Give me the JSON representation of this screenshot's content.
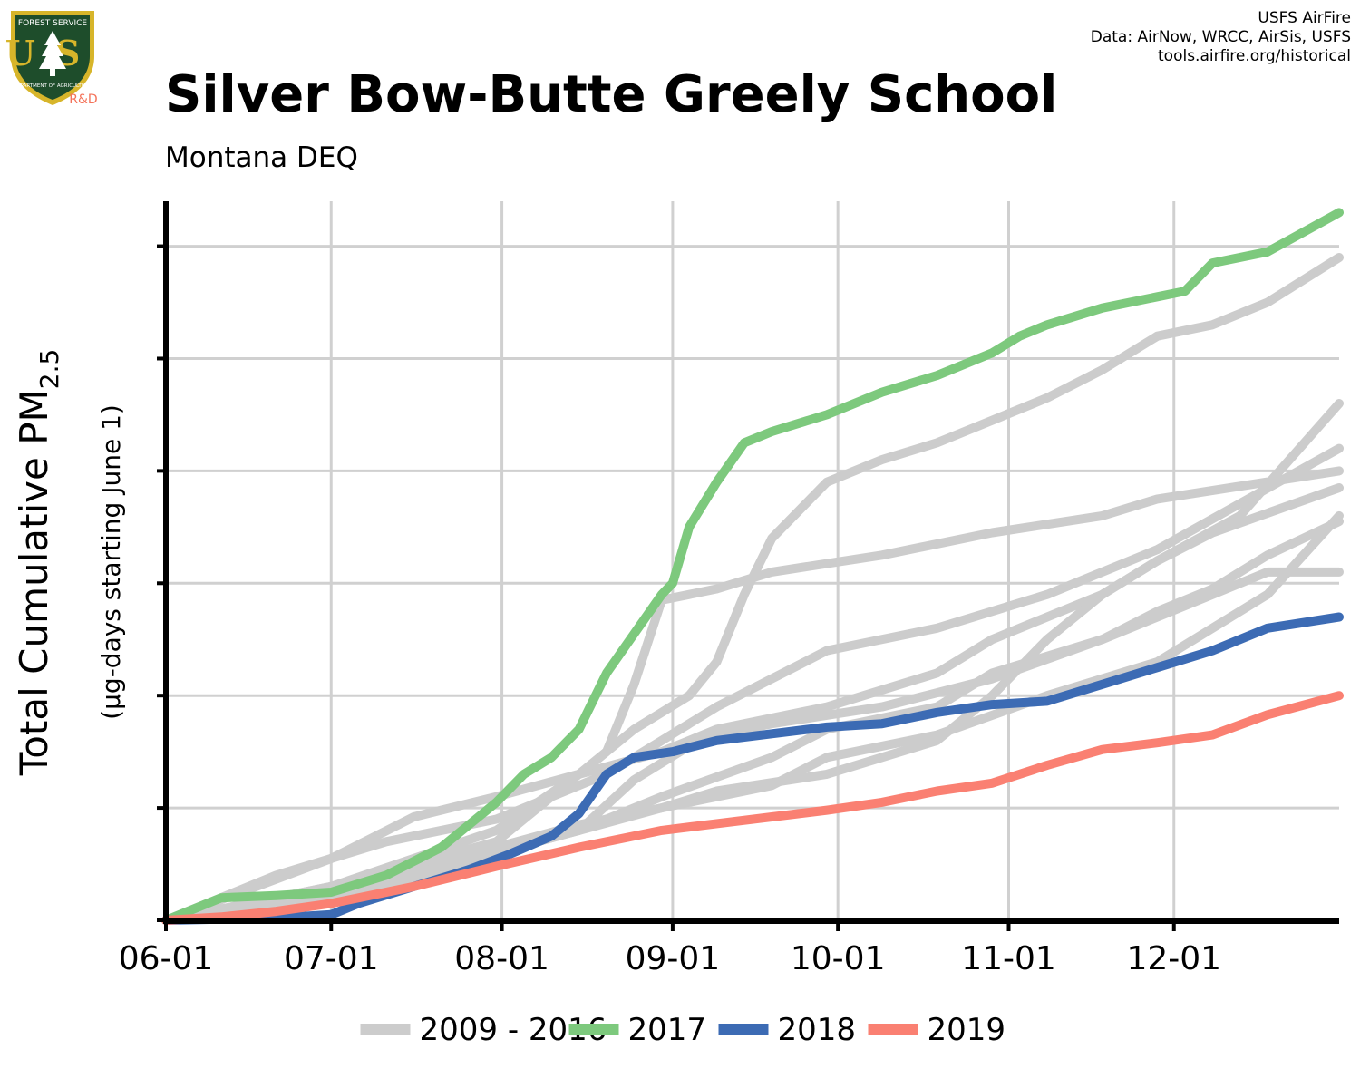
{
  "header": {
    "title": "Silver Bow-Butte Greely School",
    "subtitle": "Montana DEQ",
    "credits": [
      "USFS AirFire",
      "Data: AirNow, WRCC, AirSis, USFS",
      "tools.airfire.org/historical"
    ]
  },
  "logo": {
    "top_text": "FOREST SERVICE",
    "letters": "US",
    "bottom_text": "DEPARTMENT OF AGRICULTURE",
    "badge": "R&D",
    "colors": {
      "shield": "#1e4d2b",
      "gold": "#d7b52a",
      "badge": "#f4735a"
    }
  },
  "chart_data": {
    "type": "line",
    "title": "Silver Bow-Butte Greely School",
    "subtitle": "Montana DEQ",
    "ylabel_main": "Total Cumulative PM",
    "ylabel_sub": "2.5",
    "ylabel_units": "(µg-days starting June 1)",
    "x_ticks": [
      "06-01",
      "07-01",
      "08-01",
      "09-01",
      "10-01",
      "11-01",
      "12-01"
    ],
    "x_tick_days": [
      0,
      30,
      61,
      92,
      122,
      153,
      183
    ],
    "xlim": [
      0,
      213
    ],
    "ylim": [
      0,
      6.4
    ],
    "y_gridlines": [
      1,
      2,
      3,
      4,
      5,
      6
    ],
    "y_tick_labels": "none",
    "grid": true,
    "legend_position": "bottom",
    "legend": [
      {
        "label": "2009 - 2016",
        "color": "#cccccc"
      },
      {
        "label": "2017",
        "color": "#7dc97d"
      },
      {
        "label": "2018",
        "color": "#3c6bb4"
      },
      {
        "label": "2019",
        "color": "#fa8072"
      }
    ],
    "series": [
      {
        "name": "2009 - 2016",
        "color": "#cccccc",
        "points": [
          [
            0,
            0
          ],
          [
            20,
            0.4
          ],
          [
            40,
            0.7
          ],
          [
            60,
            0.9
          ],
          [
            80,
            1.3
          ],
          [
            90,
            1.6
          ],
          [
            100,
            1.9
          ],
          [
            120,
            2.4
          ],
          [
            140,
            2.6
          ],
          [
            160,
            2.9
          ],
          [
            180,
            3.3
          ],
          [
            213,
            4.2
          ]
        ]
      },
      {
        "name": "2009 - 2016",
        "color": "#cccccc",
        "points": [
          [
            0,
            0
          ],
          [
            30,
            0.55
          ],
          [
            45,
            0.92
          ],
          [
            60,
            1.1
          ],
          [
            75,
            1.3
          ],
          [
            90,
            1.5
          ],
          [
            100,
            1.7
          ],
          [
            120,
            1.9
          ],
          [
            140,
            2.2
          ],
          [
            150,
            2.5
          ],
          [
            170,
            2.9
          ],
          [
            180,
            3.2
          ],
          [
            195,
            3.6
          ],
          [
            213,
            4.6
          ]
        ]
      },
      {
        "name": "2009 - 2016",
        "color": "#cccccc",
        "points": [
          [
            0,
            0
          ],
          [
            30,
            0.3
          ],
          [
            60,
            0.7
          ],
          [
            75,
            1.3
          ],
          [
            80,
            1.5
          ],
          [
            85,
            2.1
          ],
          [
            90,
            2.85
          ],
          [
            100,
            2.95
          ],
          [
            110,
            3.1
          ],
          [
            130,
            3.25
          ],
          [
            150,
            3.45
          ],
          [
            170,
            3.6
          ],
          [
            180,
            3.75
          ],
          [
            213,
            4.0
          ]
        ]
      },
      {
        "name": "2009 - 2016",
        "color": "#cccccc",
        "points": [
          [
            0,
            0
          ],
          [
            30,
            0.3
          ],
          [
            60,
            0.8
          ],
          [
            75,
            1.3
          ],
          [
            85,
            1.7
          ],
          [
            95,
            2.0
          ],
          [
            100,
            2.3
          ],
          [
            105,
            2.9
          ],
          [
            110,
            3.4
          ],
          [
            120,
            3.9
          ],
          [
            130,
            4.1
          ],
          [
            140,
            4.25
          ],
          [
            150,
            4.45
          ],
          [
            160,
            4.65
          ],
          [
            170,
            4.9
          ],
          [
            180,
            5.2
          ],
          [
            190,
            5.3
          ],
          [
            200,
            5.5
          ],
          [
            213,
            5.9
          ]
        ]
      },
      {
        "name": "2009 - 2016",
        "color": "#cccccc",
        "points": [
          [
            0,
            0
          ],
          [
            30,
            0.2
          ],
          [
            60,
            0.6
          ],
          [
            75,
            0.8
          ],
          [
            90,
            1.0
          ],
          [
            100,
            1.15
          ],
          [
            120,
            1.3
          ],
          [
            140,
            1.6
          ],
          [
            150,
            2.0
          ],
          [
            160,
            2.5
          ],
          [
            170,
            2.9
          ],
          [
            180,
            3.2
          ],
          [
            190,
            3.45
          ],
          [
            213,
            3.85
          ]
        ]
      },
      {
        "name": "2009 - 2016",
        "color": "#cccccc",
        "points": [
          [
            0,
            0
          ],
          [
            30,
            0.25
          ],
          [
            60,
            0.65
          ],
          [
            75,
            0.85
          ],
          [
            90,
            1.0
          ],
          [
            110,
            1.2
          ],
          [
            120,
            1.45
          ],
          [
            140,
            1.65
          ],
          [
            160,
            2.0
          ],
          [
            180,
            2.3
          ],
          [
            190,
            2.6
          ],
          [
            200,
            2.9
          ],
          [
            213,
            3.6
          ]
        ]
      },
      {
        "name": "2009 - 2016",
        "color": "#cccccc",
        "points": [
          [
            0,
            0
          ],
          [
            30,
            0.15
          ],
          [
            60,
            0.6
          ],
          [
            75,
            0.8
          ],
          [
            90,
            1.1
          ],
          [
            110,
            1.45
          ],
          [
            120,
            1.7
          ],
          [
            140,
            1.9
          ],
          [
            150,
            2.2
          ],
          [
            170,
            2.5
          ],
          [
            180,
            2.7
          ],
          [
            190,
            2.9
          ],
          [
            200,
            3.1
          ],
          [
            213,
            3.1
          ]
        ]
      },
      {
        "name": "2009 - 2016",
        "color": "#cccccc",
        "points": [
          [
            0,
            0
          ],
          [
            30,
            0.2
          ],
          [
            60,
            0.62
          ],
          [
            75,
            0.8
          ],
          [
            85,
            1.25
          ],
          [
            95,
            1.55
          ],
          [
            100,
            1.65
          ],
          [
            110,
            1.75
          ],
          [
            130,
            1.9
          ],
          [
            150,
            2.15
          ],
          [
            170,
            2.5
          ],
          [
            180,
            2.75
          ],
          [
            190,
            2.95
          ],
          [
            200,
            3.25
          ],
          [
            213,
            3.55
          ]
        ]
      },
      {
        "name": "2017",
        "color": "#7dc97d",
        "points": [
          [
            0,
            0
          ],
          [
            10,
            0.2
          ],
          [
            20,
            0.22
          ],
          [
            30,
            0.25
          ],
          [
            40,
            0.4
          ],
          [
            50,
            0.65
          ],
          [
            60,
            1.05
          ],
          [
            65,
            1.3
          ],
          [
            70,
            1.45
          ],
          [
            75,
            1.7
          ],
          [
            80,
            2.2
          ],
          [
            85,
            2.55
          ],
          [
            90,
            2.9
          ],
          [
            92,
            3.0
          ],
          [
            95,
            3.5
          ],
          [
            100,
            3.9
          ],
          [
            105,
            4.25
          ],
          [
            110,
            4.35
          ],
          [
            120,
            4.5
          ],
          [
            130,
            4.7
          ],
          [
            140,
            4.85
          ],
          [
            150,
            5.05
          ],
          [
            155,
            5.2
          ],
          [
            160,
            5.3
          ],
          [
            170,
            5.45
          ],
          [
            180,
            5.55
          ],
          [
            185,
            5.6
          ],
          [
            190,
            5.85
          ],
          [
            200,
            5.95
          ],
          [
            213,
            6.3
          ]
        ]
      },
      {
        "name": "2018",
        "color": "#3c6bb4",
        "points": [
          [
            0,
            0
          ],
          [
            20,
            0.02
          ],
          [
            30,
            0.05
          ],
          [
            35,
            0.15
          ],
          [
            45,
            0.3
          ],
          [
            55,
            0.45
          ],
          [
            62,
            0.58
          ],
          [
            70,
            0.75
          ],
          [
            75,
            0.95
          ],
          [
            80,
            1.3
          ],
          [
            85,
            1.45
          ],
          [
            92,
            1.5
          ],
          [
            100,
            1.6
          ],
          [
            110,
            1.66
          ],
          [
            120,
            1.72
          ],
          [
            130,
            1.75
          ],
          [
            140,
            1.85
          ],
          [
            150,
            1.92
          ],
          [
            160,
            1.95
          ],
          [
            170,
            2.1
          ],
          [
            180,
            2.25
          ],
          [
            190,
            2.4
          ],
          [
            200,
            2.6
          ],
          [
            213,
            2.7
          ]
        ]
      },
      {
        "name": "2019",
        "color": "#fa8072",
        "points": [
          [
            0,
            0
          ],
          [
            10,
            0.03
          ],
          [
            20,
            0.08
          ],
          [
            30,
            0.15
          ],
          [
            45,
            0.3
          ],
          [
            60,
            0.48
          ],
          [
            75,
            0.65
          ],
          [
            90,
            0.8
          ],
          [
            100,
            0.86
          ],
          [
            110,
            0.92
          ],
          [
            120,
            0.98
          ],
          [
            130,
            1.05
          ],
          [
            140,
            1.15
          ],
          [
            150,
            1.22
          ],
          [
            160,
            1.38
          ],
          [
            170,
            1.52
          ],
          [
            180,
            1.58
          ],
          [
            190,
            1.65
          ],
          [
            200,
            1.83
          ],
          [
            213,
            2.0
          ]
        ]
      }
    ]
  }
}
